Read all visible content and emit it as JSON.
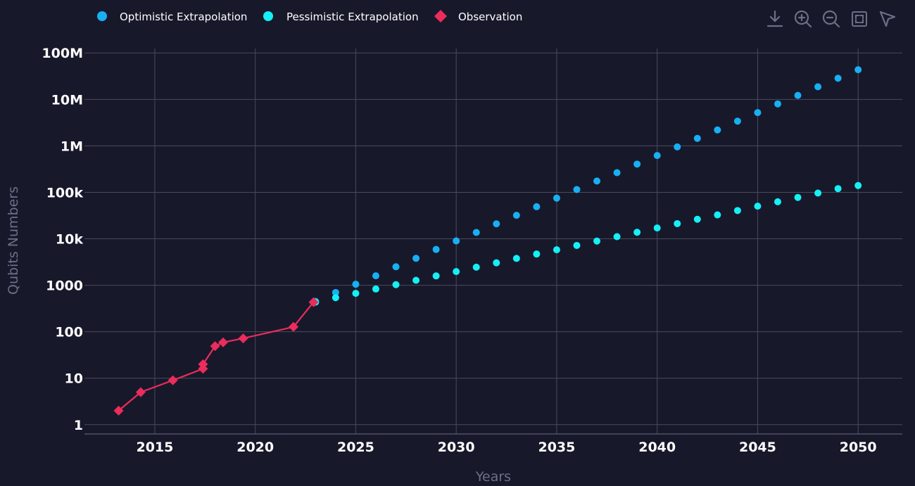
{
  "colors": {
    "background": "#18182b",
    "grid": "#4a4a5e",
    "optimistic": "#17b0f2",
    "pessimistic": "#14f0f5",
    "observation": "#ea2d5b",
    "axis_title": "#6e6e86",
    "toolbar_icon": "#6e6e86"
  },
  "toolbar": {
    "icons": [
      "download-icon",
      "zoom-in-icon",
      "zoom-out-icon",
      "reset-view-icon",
      "select-cursor-icon"
    ]
  },
  "chart_data": {
    "type": "scatter",
    "xlabel": "Years",
    "ylabel": "Qubits Numbers",
    "xlim": [
      2011.5,
      2052.2
    ],
    "ylim_log10": [
      -0.2,
      8.14
    ],
    "y_scale": "log",
    "grid": true,
    "legend_position": "top-left",
    "x_ticks": [
      2015,
      2020,
      2025,
      2030,
      2035,
      2040,
      2045,
      2050
    ],
    "x_tick_labels": [
      "2015",
      "2020",
      "2025",
      "2030",
      "2035",
      "2040",
      "2045",
      "2050"
    ],
    "y_ticks": [
      1,
      10,
      100,
      1000,
      10000,
      100000,
      1000000,
      10000000,
      100000000
    ],
    "y_tick_labels": [
      "1",
      "10",
      "100",
      "1000",
      "10k",
      "100k",
      "1M",
      "10M",
      "100M"
    ],
    "series": [
      {
        "name": "Optimistic Extrapolation",
        "marker": "circle",
        "mode": "markers",
        "x": [
          2023,
          2024,
          2025,
          2026,
          2027,
          2028,
          2029,
          2030,
          2031,
          2032,
          2033,
          2034,
          2035,
          2036,
          2037,
          2038,
          2039,
          2040,
          2041,
          2042,
          2043,
          2044,
          2045,
          2046,
          2047,
          2048,
          2049,
          2050
        ],
        "y": [
          450,
          700,
          1050,
          1600,
          2500,
          3800,
          5900,
          9000,
          13700,
          21000,
          32000,
          49000,
          75000,
          115000,
          175000,
          265000,
          405000,
          620000,
          950000,
          1450000,
          2200000,
          3400000,
          5200000,
          8000000,
          12200000,
          18700000,
          28500000,
          43500000
        ]
      },
      {
        "name": "Pessimistic Extrapolation",
        "marker": "circle",
        "mode": "markers",
        "x": [
          2023,
          2024,
          2025,
          2026,
          2027,
          2028,
          2029,
          2030,
          2031,
          2032,
          2033,
          2034,
          2035,
          2036,
          2037,
          2038,
          2039,
          2040,
          2041,
          2042,
          2043,
          2044,
          2045,
          2046,
          2047,
          2048,
          2049,
          2050
        ],
        "y": [
          433,
          540,
          670,
          830,
          1030,
          1280,
          1590,
          1970,
          2450,
          3040,
          3780,
          4700,
          5800,
          7200,
          8950,
          11100,
          13800,
          17100,
          21200,
          26300,
          32700,
          40600,
          50400,
          62600,
          77700,
          96500,
          120000,
          140000
        ]
      },
      {
        "name": "Observation",
        "marker": "diamond",
        "mode": "lines+markers",
        "x": [
          2013.2,
          2014.3,
          2015.9,
          2017.4,
          2017.4,
          2018.0,
          2018.4,
          2019.4,
          2021.9,
          2022.9
        ],
        "y": [
          2,
          5,
          9,
          16,
          20,
          49,
          59,
          72,
          127,
          433
        ]
      }
    ]
  }
}
